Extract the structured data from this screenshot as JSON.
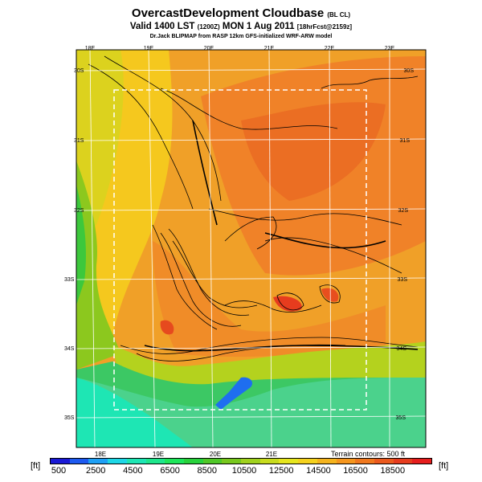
{
  "title": {
    "main": "OvercastDevelopment Cloudbase",
    "tag": "(BL CL)",
    "valid": "Valid 1400 LST",
    "z": "(1200Z)",
    "date": "MON 1 Aug 2011",
    "fcst": "[18hrFcst@2159z]",
    "model": "Dr.Jack BLIPMAP from RASP 12km GFS-initialized WRF-ARW model"
  },
  "map": {
    "lon_top": [
      "18E",
      "19E",
      "20E",
      "21E",
      "22E",
      "23E"
    ],
    "lon_bottom": [
      "18E",
      "19E",
      "20E",
      "21E"
    ],
    "lat_left": [
      "30S",
      "31S",
      "32S",
      "33S",
      "34S",
      "35S"
    ],
    "lat_right": [
      "30S",
      "31S",
      "32S",
      "33S",
      "34S",
      "35S"
    ],
    "terrain_note": "Terrain contours: 500 ft"
  },
  "colorbar": {
    "unit_left": "[ft]",
    "unit_right": "[ft]",
    "labels": [
      "500",
      "2500",
      "4500",
      "6500",
      "8500",
      "10500",
      "12500",
      "14500",
      "16500",
      "18500"
    ],
    "colors": [
      "#1a1ad6",
      "#1e5af0",
      "#1ea0f5",
      "#1ed7e6",
      "#1ee6b4",
      "#1ee68c",
      "#1ee65a",
      "#28d23c",
      "#50c828",
      "#78c81e",
      "#a0d21e",
      "#c8dc1e",
      "#e6e61e",
      "#f5d21e",
      "#f5b41e",
      "#f5961e",
      "#f0781e",
      "#eb5a1e",
      "#e63c1e",
      "#e61e1e"
    ]
  }
}
